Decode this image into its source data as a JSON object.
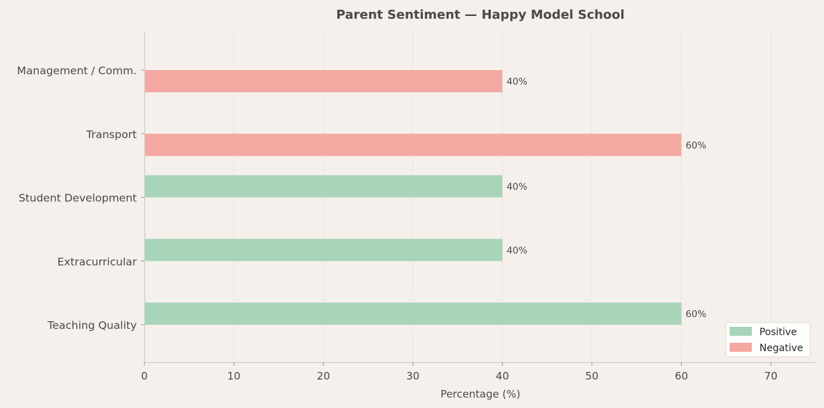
{
  "chart_data": {
    "type": "bar",
    "orientation": "horizontal",
    "title": "Parent Sentiment — Happy Model School",
    "xlabel": "Percentage (%)",
    "ylabel": "",
    "xlim": [
      0,
      75
    ],
    "xticks": [
      0,
      10,
      20,
      30,
      40,
      50,
      60,
      70
    ],
    "categories": [
      "Teaching Quality",
      "Extracurricular",
      "Student Development",
      "Transport",
      "Management / Comm."
    ],
    "series": [
      {
        "name": "Positive",
        "color": "#a8d5ba",
        "values": [
          60,
          40,
          40,
          null,
          null
        ],
        "labels": [
          "60%",
          "40%",
          "40%",
          "",
          ""
        ]
      },
      {
        "name": "Negative",
        "color": "#f5a8a2",
        "values": [
          null,
          null,
          null,
          60,
          40
        ],
        "labels": [
          "",
          "",
          "",
          "60%",
          "40%"
        ]
      }
    ],
    "grid": "x-dashed",
    "legend_position": "bottom-right"
  }
}
